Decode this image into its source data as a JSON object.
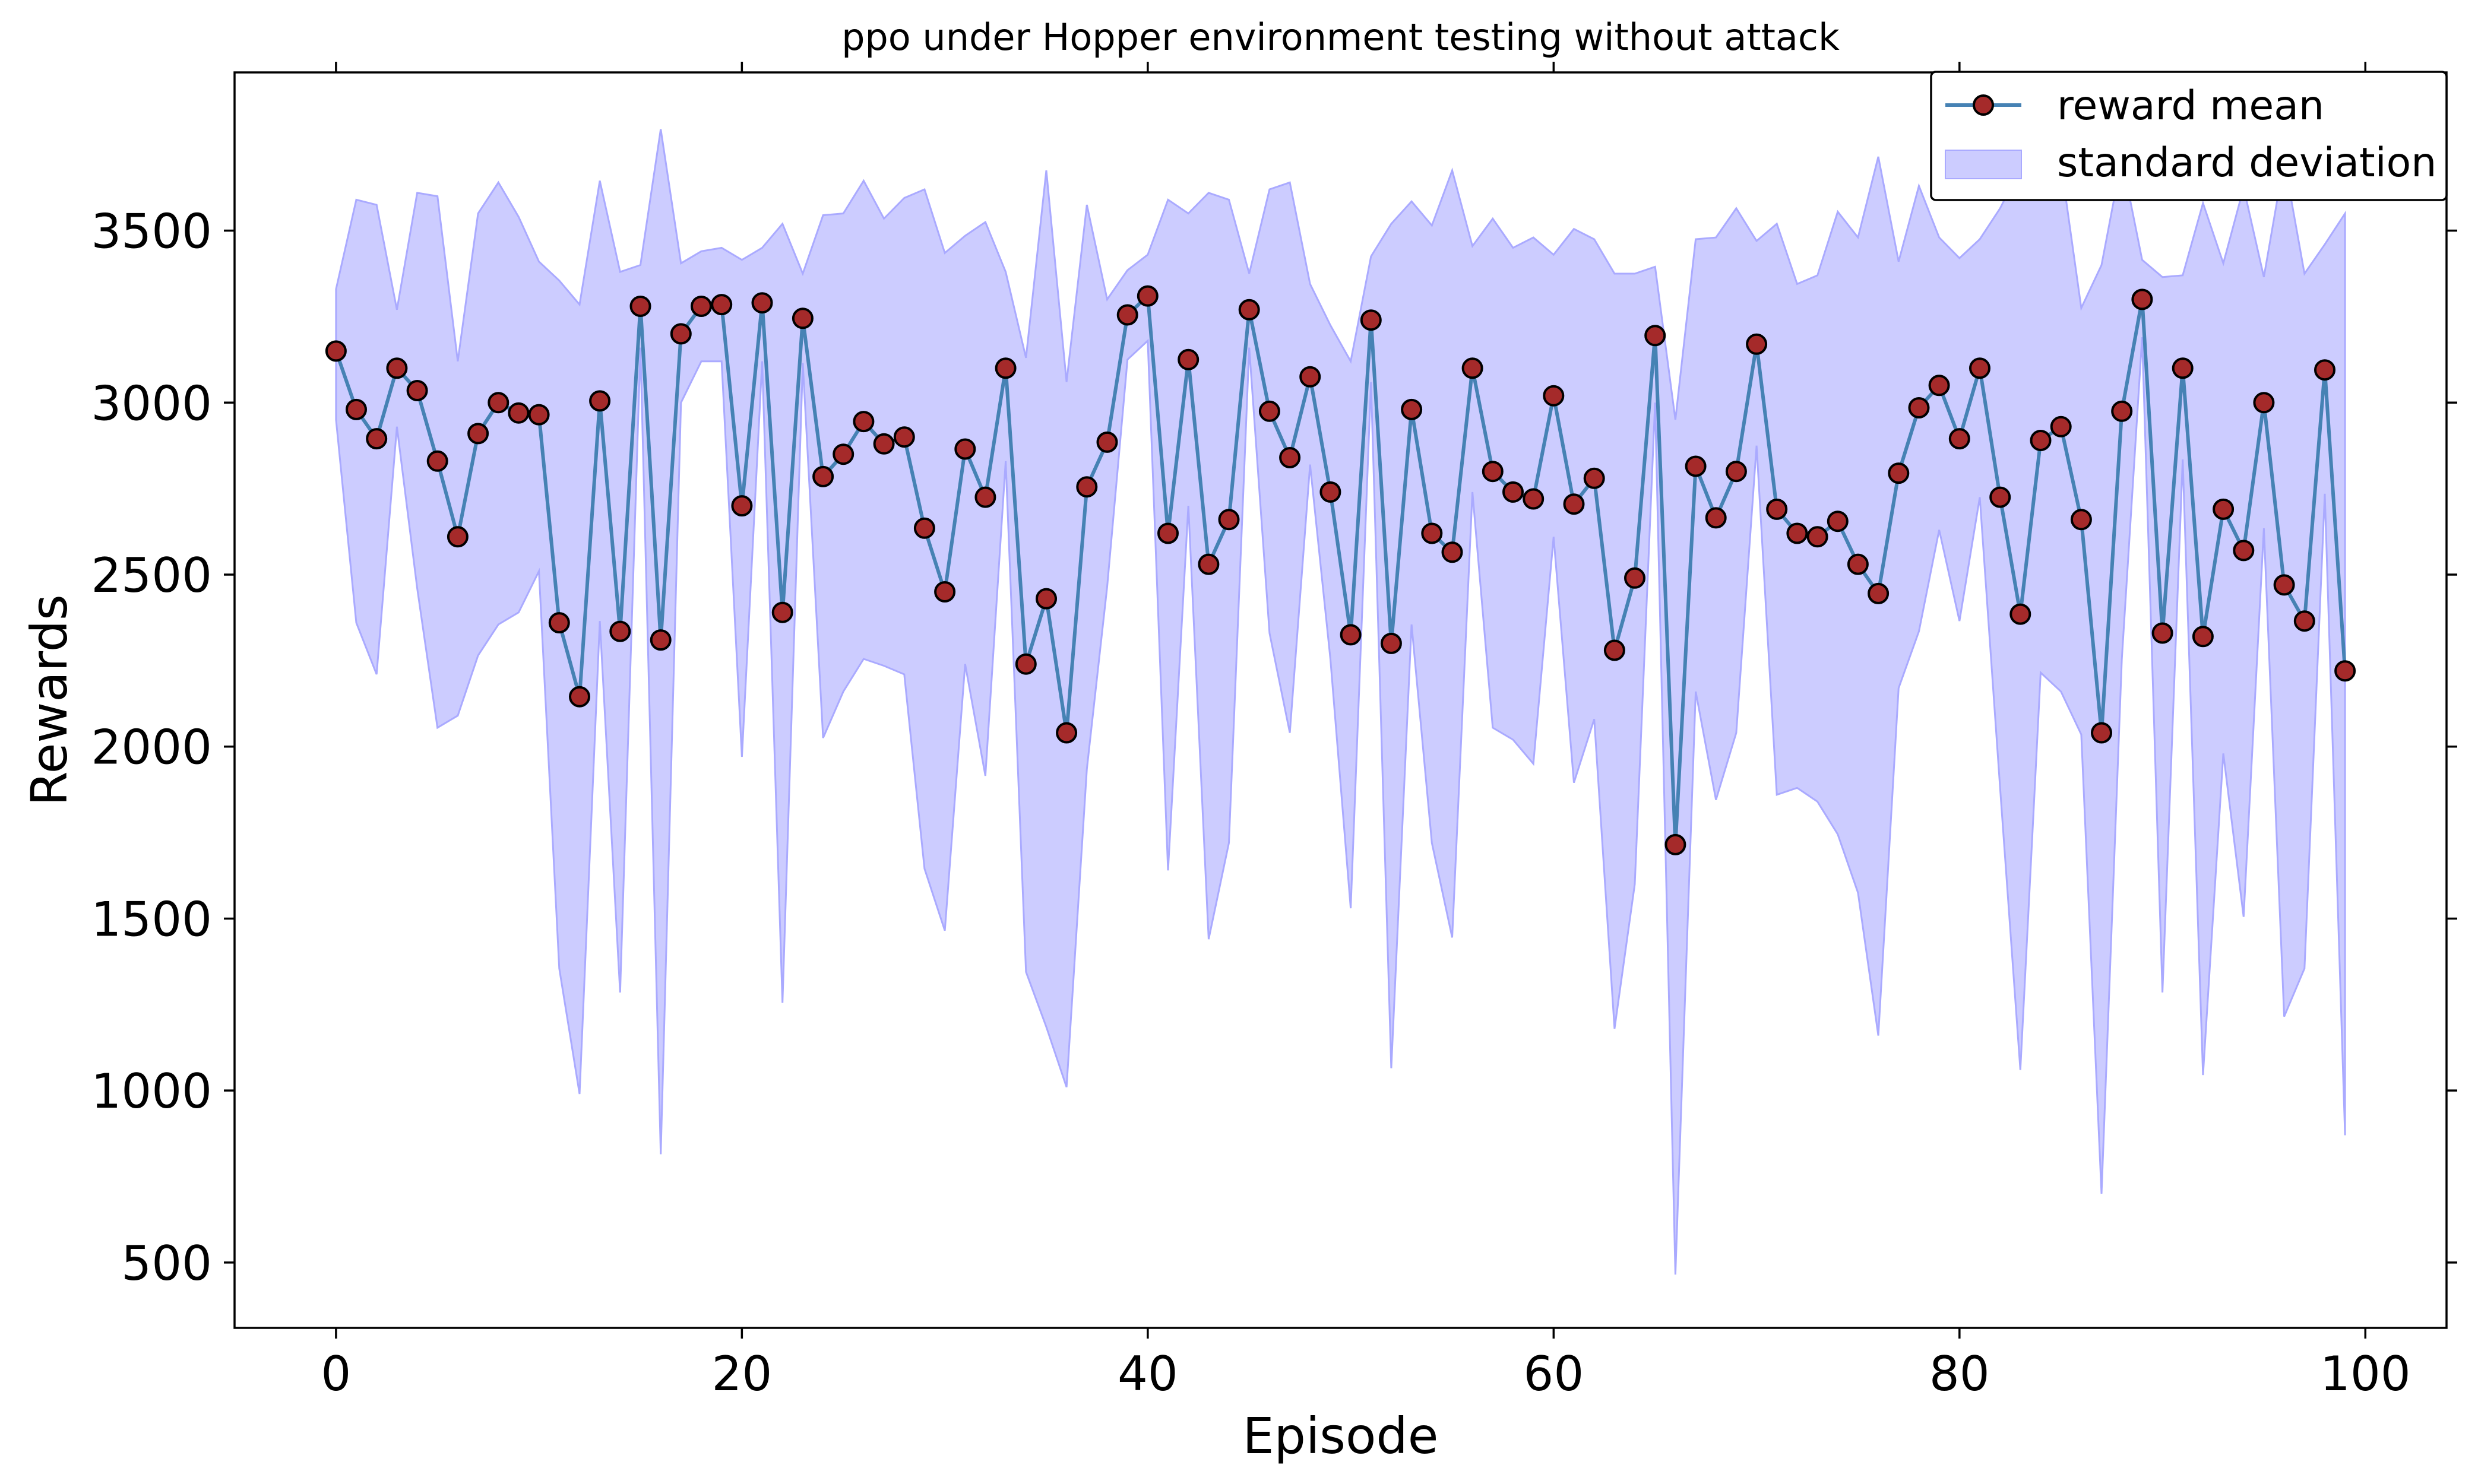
{
  "chart_data": {
    "type": "line",
    "title": "ppo under Hopper environment testing without attack",
    "xlabel": "Episode",
    "ylabel": "Rewards",
    "xlim": [
      -5,
      104
    ],
    "ylim": [
      310,
      3960
    ],
    "xticks": [
      0,
      20,
      40,
      60,
      80,
      100
    ],
    "yticks": [
      500,
      1000,
      1500,
      2000,
      2500,
      3000,
      3500
    ],
    "grid": false,
    "legend_position": "top-right",
    "legend": [
      "reward mean",
      "standard deviation"
    ],
    "colors": {
      "line": "#4682b4",
      "marker_fill": "#a52a2a",
      "marker_edge": "#000000",
      "band_fill": "#ccccff",
      "band_edge": "#aaaaff"
    },
    "x": [
      0,
      1,
      2,
      3,
      4,
      5,
      6,
      7,
      8,
      9,
      10,
      11,
      12,
      13,
      14,
      15,
      16,
      17,
      18,
      19,
      20,
      21,
      22,
      23,
      24,
      25,
      26,
      27,
      28,
      29,
      30,
      31,
      32,
      33,
      34,
      35,
      36,
      37,
      38,
      39,
      40,
      41,
      42,
      43,
      44,
      45,
      46,
      47,
      48,
      49,
      50,
      51,
      52,
      53,
      54,
      55,
      56,
      57,
      58,
      59,
      60,
      61,
      62,
      63,
      64,
      65,
      66,
      67,
      68,
      69,
      70,
      71,
      72,
      73,
      74,
      75,
      76,
      77,
      78,
      79,
      80,
      81,
      82,
      83,
      84,
      85,
      86,
      87,
      88,
      89,
      90,
      91,
      92,
      93,
      94,
      95,
      96,
      97,
      98,
      99
    ],
    "series": [
      {
        "name": "reward mean",
        "values": [
          3150,
          2980,
          2895,
          3100,
          3035,
          2830,
          2610,
          2910,
          3000,
          2970,
          2965,
          2360,
          2145,
          3005,
          2335,
          3280,
          2310,
          3200,
          3280,
          3285,
          2700,
          3290,
          2390,
          3245,
          2785,
          2850,
          2945,
          2880,
          2900,
          2635,
          2450,
          2865,
          2725,
          3100,
          2240,
          2430,
          2040,
          2755,
          2885,
          3255,
          3310,
          2620,
          3125,
          2530,
          2660,
          3270,
          2975,
          2840,
          3075,
          2740,
          2325,
          3240,
          2300,
          2980,
          2620,
          2565,
          3100,
          2800,
          2740,
          2720,
          3020,
          2705,
          2780,
          2280,
          2490,
          3195,
          1715,
          2815,
          2665,
          2800,
          3170,
          2690,
          2620,
          2610,
          2655,
          2530,
          2445,
          2795,
          2985,
          3050,
          2895,
          3100,
          2725,
          2385,
          2890,
          2930,
          2660,
          2040,
          2975,
          3300,
          2330,
          3100,
          2320,
          2690,
          2570,
          3000,
          2470,
          2365,
          3095,
          2220
        ]
      },
      {
        "name": "standard deviation",
        "upper": [
          3330,
          3590,
          3575,
          3270,
          3610,
          3600,
          3120,
          3550,
          3640,
          3540,
          3410,
          3355,
          3285,
          3645,
          3380,
          3400,
          3795,
          3405,
          3440,
          3450,
          3415,
          3450,
          3520,
          3375,
          3545,
          3550,
          3645,
          3535,
          3595,
          3620,
          3435,
          3485,
          3525,
          3380,
          3130,
          3675,
          3060,
          3575,
          3300,
          3385,
          3430,
          3590,
          3550,
          3610,
          3590,
          3375,
          3620,
          3640,
          3345,
          3225,
          3120,
          3425,
          3520,
          3585,
          3515,
          3675,
          3455,
          3535,
          3450,
          3480,
          3430,
          3505,
          3475,
          3375,
          3375,
          3395,
          2950,
          3475,
          3480,
          3565,
          3470,
          3520,
          3345,
          3370,
          3555,
          3480,
          3715,
          3410,
          3630,
          3480,
          3420,
          3475,
          3565,
          3680,
          3705,
          3695,
          3275,
          3400,
          3710,
          3415,
          3365,
          3370,
          3580,
          3405,
          3625,
          3365,
          3705,
          3375,
          3460,
          3550
        ],
        "lower": [
          2950,
          2360,
          2210,
          2930,
          2460,
          2055,
          2090,
          2265,
          2355,
          2390,
          2510,
          1355,
          990,
          2365,
          1285,
          3160,
          815,
          3000,
          3120,
          3120,
          1970,
          3120,
          1255,
          3115,
          2025,
          2160,
          2255,
          2235,
          2210,
          1645,
          1465,
          2240,
          1915,
          2830,
          1345,
          1185,
          1010,
          1935,
          2465,
          3125,
          3180,
          1640,
          2700,
          1440,
          1720,
          3160,
          2330,
          2040,
          2820,
          2255,
          1530,
          3060,
          1065,
          2355,
          1720,
          1445,
          2740,
          2055,
          2020,
          1950,
          2610,
          1895,
          2080,
          1180,
          1600,
          3000,
          465,
          2160,
          1845,
          2040,
          2875,
          1860,
          1880,
          1840,
          1745,
          1575,
          1160,
          2170,
          2335,
          2630,
          2365,
          2725,
          1880,
          1060,
          2215,
          2160,
          2035,
          700,
          2255,
          3190,
          1285,
          2835,
          1045,
          1980,
          1505,
          2635,
          1215,
          1355,
          2735,
          870
        ]
      }
    ]
  }
}
